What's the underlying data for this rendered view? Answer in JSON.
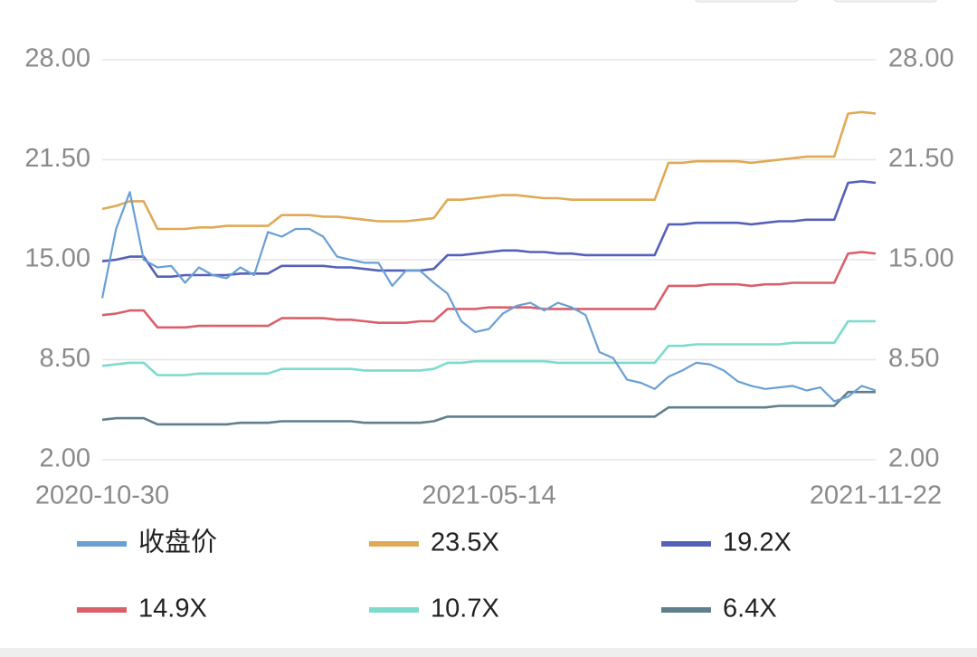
{
  "chart_data": {
    "type": "line",
    "categories": [
      "2020-10-30",
      null,
      null,
      null,
      null,
      null,
      null,
      null,
      null,
      null,
      null,
      null,
      null,
      null,
      null,
      null,
      null,
      null,
      null,
      null,
      null,
      null,
      null,
      null,
      null,
      null,
      null,
      null,
      "2021-05-14",
      null,
      null,
      null,
      null,
      null,
      null,
      null,
      null,
      null,
      null,
      null,
      null,
      null,
      null,
      null,
      null,
      null,
      null,
      null,
      null,
      null,
      null,
      null,
      null,
      null,
      null,
      null,
      "2021-11-22"
    ],
    "ylim": [
      2,
      28
    ],
    "yticks": [
      {
        "value": 28,
        "label": "28.00"
      },
      {
        "value": 21.5,
        "label": "21.50"
      },
      {
        "value": 15,
        "label": "15.00"
      },
      {
        "value": 8.5,
        "label": "8.50"
      },
      {
        "value": 2,
        "label": "2.00"
      }
    ],
    "grid": true,
    "series": [
      {
        "name": "收盘价",
        "color": "#6a9fd4",
        "values": [
          12.5,
          17,
          19.4,
          15,
          14.5,
          14.6,
          13.5,
          14.5,
          14,
          13.8,
          14.5,
          14,
          16.8,
          16.5,
          17,
          17,
          16.5,
          15.2,
          15,
          14.8,
          14.8,
          13.3,
          14.3,
          14.3,
          13.5,
          12.8,
          11,
          10.3,
          10.5,
          11.5,
          12,
          12.2,
          11.7,
          12.2,
          11.9,
          11.4,
          9,
          8.6,
          7.2,
          7,
          6.6,
          7.4,
          7.8,
          8.3,
          8.2,
          7.8,
          7.1,
          6.8,
          6.6,
          6.7,
          6.8,
          6.5,
          6.7,
          5.8,
          6.1,
          6.8,
          6.5
        ]
      },
      {
        "name": "23.5X",
        "color": "#e0a956",
        "values": [
          18.3,
          18.5,
          18.8,
          18.8,
          17.0,
          17.0,
          17.0,
          17.1,
          17.1,
          17.2,
          17.2,
          17.2,
          17.2,
          17.9,
          17.9,
          17.9,
          17.8,
          17.8,
          17.7,
          17.6,
          17.5,
          17.5,
          17.5,
          17.6,
          17.7,
          18.9,
          18.9,
          19.0,
          19.1,
          19.2,
          19.2,
          19.1,
          19.0,
          19.0,
          18.9,
          18.9,
          18.9,
          18.9,
          18.9,
          18.9,
          18.9,
          21.3,
          21.3,
          21.4,
          21.4,
          21.4,
          21.4,
          21.3,
          21.4,
          21.5,
          21.6,
          21.7,
          21.7,
          21.7,
          24.5,
          24.6,
          24.5
        ]
      },
      {
        "name": "19.2X",
        "color": "#5561b8",
        "values": [
          14.9,
          15.0,
          15.2,
          15.2,
          13.9,
          13.9,
          14.0,
          14.0,
          14.0,
          14.0,
          14.1,
          14.1,
          14.1,
          14.6,
          14.6,
          14.6,
          14.6,
          14.5,
          14.5,
          14.4,
          14.3,
          14.3,
          14.3,
          14.3,
          14.4,
          15.3,
          15.3,
          15.4,
          15.5,
          15.6,
          15.6,
          15.5,
          15.5,
          15.4,
          15.4,
          15.3,
          15.3,
          15.3,
          15.3,
          15.3,
          15.3,
          17.3,
          17.3,
          17.4,
          17.4,
          17.4,
          17.4,
          17.3,
          17.4,
          17.5,
          17.5,
          17.6,
          17.6,
          17.6,
          20.0,
          20.1,
          20.0
        ]
      },
      {
        "name": "14.9X",
        "color": "#d9606a",
        "values": [
          11.4,
          11.5,
          11.7,
          11.7,
          10.6,
          10.6,
          10.6,
          10.7,
          10.7,
          10.7,
          10.7,
          10.7,
          10.7,
          11.2,
          11.2,
          11.2,
          11.2,
          11.1,
          11.1,
          11.0,
          10.9,
          10.9,
          10.9,
          11.0,
          11.0,
          11.8,
          11.8,
          11.8,
          11.9,
          11.9,
          11.9,
          11.9,
          11.8,
          11.8,
          11.8,
          11.8,
          11.8,
          11.8,
          11.8,
          11.8,
          11.8,
          13.3,
          13.3,
          13.3,
          13.4,
          13.4,
          13.4,
          13.3,
          13.4,
          13.4,
          13.5,
          13.5,
          13.5,
          13.5,
          15.4,
          15.5,
          15.4
        ]
      },
      {
        "name": "10.7X",
        "color": "#7ddbcc",
        "values": [
          8.1,
          8.2,
          8.3,
          8.3,
          7.5,
          7.5,
          7.5,
          7.6,
          7.6,
          7.6,
          7.6,
          7.6,
          7.6,
          7.9,
          7.9,
          7.9,
          7.9,
          7.9,
          7.9,
          7.8,
          7.8,
          7.8,
          7.8,
          7.8,
          7.9,
          8.3,
          8.3,
          8.4,
          8.4,
          8.4,
          8.4,
          8.4,
          8.4,
          8.3,
          8.3,
          8.3,
          8.3,
          8.3,
          8.3,
          8.3,
          8.3,
          9.4,
          9.4,
          9.5,
          9.5,
          9.5,
          9.5,
          9.5,
          9.5,
          9.5,
          9.6,
          9.6,
          9.6,
          9.6,
          11.0,
          11.0,
          11.0
        ]
      },
      {
        "name": "6.4X",
        "color": "#5f7f8a",
        "values": [
          4.6,
          4.7,
          4.7,
          4.7,
          4.3,
          4.3,
          4.3,
          4.3,
          4.3,
          4.3,
          4.4,
          4.4,
          4.4,
          4.5,
          4.5,
          4.5,
          4.5,
          4.5,
          4.5,
          4.4,
          4.4,
          4.4,
          4.4,
          4.4,
          4.5,
          4.8,
          4.8,
          4.8,
          4.8,
          4.8,
          4.8,
          4.8,
          4.8,
          4.8,
          4.8,
          4.8,
          4.8,
          4.8,
          4.8,
          4.8,
          4.8,
          5.4,
          5.4,
          5.4,
          5.4,
          5.4,
          5.4,
          5.4,
          5.4,
          5.5,
          5.5,
          5.5,
          5.5,
          5.5,
          6.4,
          6.4,
          6.4
        ]
      }
    ]
  }
}
